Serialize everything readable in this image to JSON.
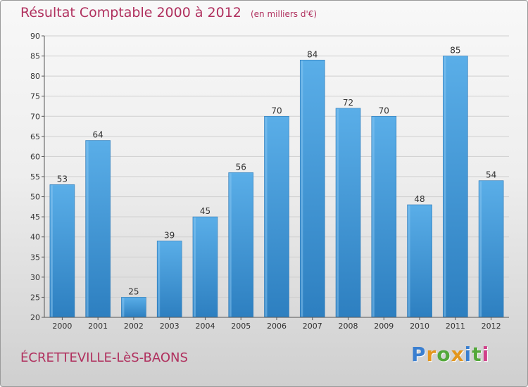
{
  "header": {
    "title": "Résultat Comptable 2000 à 2012",
    "unit": "(en milliers d'€)"
  },
  "footer": {
    "commune": "ÉCRETTEVILLE-LèS-BAONS",
    "brand_letters": [
      {
        "char": "P",
        "color": "#3a7fd0"
      },
      {
        "char": "r",
        "color": "#e3961e"
      },
      {
        "char": "o",
        "color": "#53a83a"
      },
      {
        "char": "x",
        "color": "#e3961e"
      },
      {
        "char": "i",
        "color": "#3a7fd0"
      },
      {
        "char": "t",
        "color": "#53a83a"
      },
      {
        "char": "i",
        "color": "#d1408a"
      }
    ]
  },
  "colors": {
    "title": "#b0305e",
    "bar_top": "#5aaee8",
    "bar_bottom": "#2d7fc0",
    "grid": "#cfcfcf",
    "axis_text": "#333333"
  },
  "chart_data": {
    "type": "bar",
    "categories": [
      "2000",
      "2001",
      "2002",
      "2003",
      "2004",
      "2005",
      "2006",
      "2007",
      "2008",
      "2009",
      "2010",
      "2011",
      "2012"
    ],
    "values": [
      53,
      64,
      25,
      39,
      45,
      56,
      70,
      84,
      72,
      70,
      48,
      85,
      54
    ],
    "title": "Résultat Comptable 2000 à 2012",
    "subtitle": "(en milliers d'€)",
    "xlabel": "",
    "ylabel": "",
    "ylim": [
      20,
      90
    ],
    "ytick_step": 5,
    "grid": true,
    "data_labels": true,
    "legend": "none"
  }
}
